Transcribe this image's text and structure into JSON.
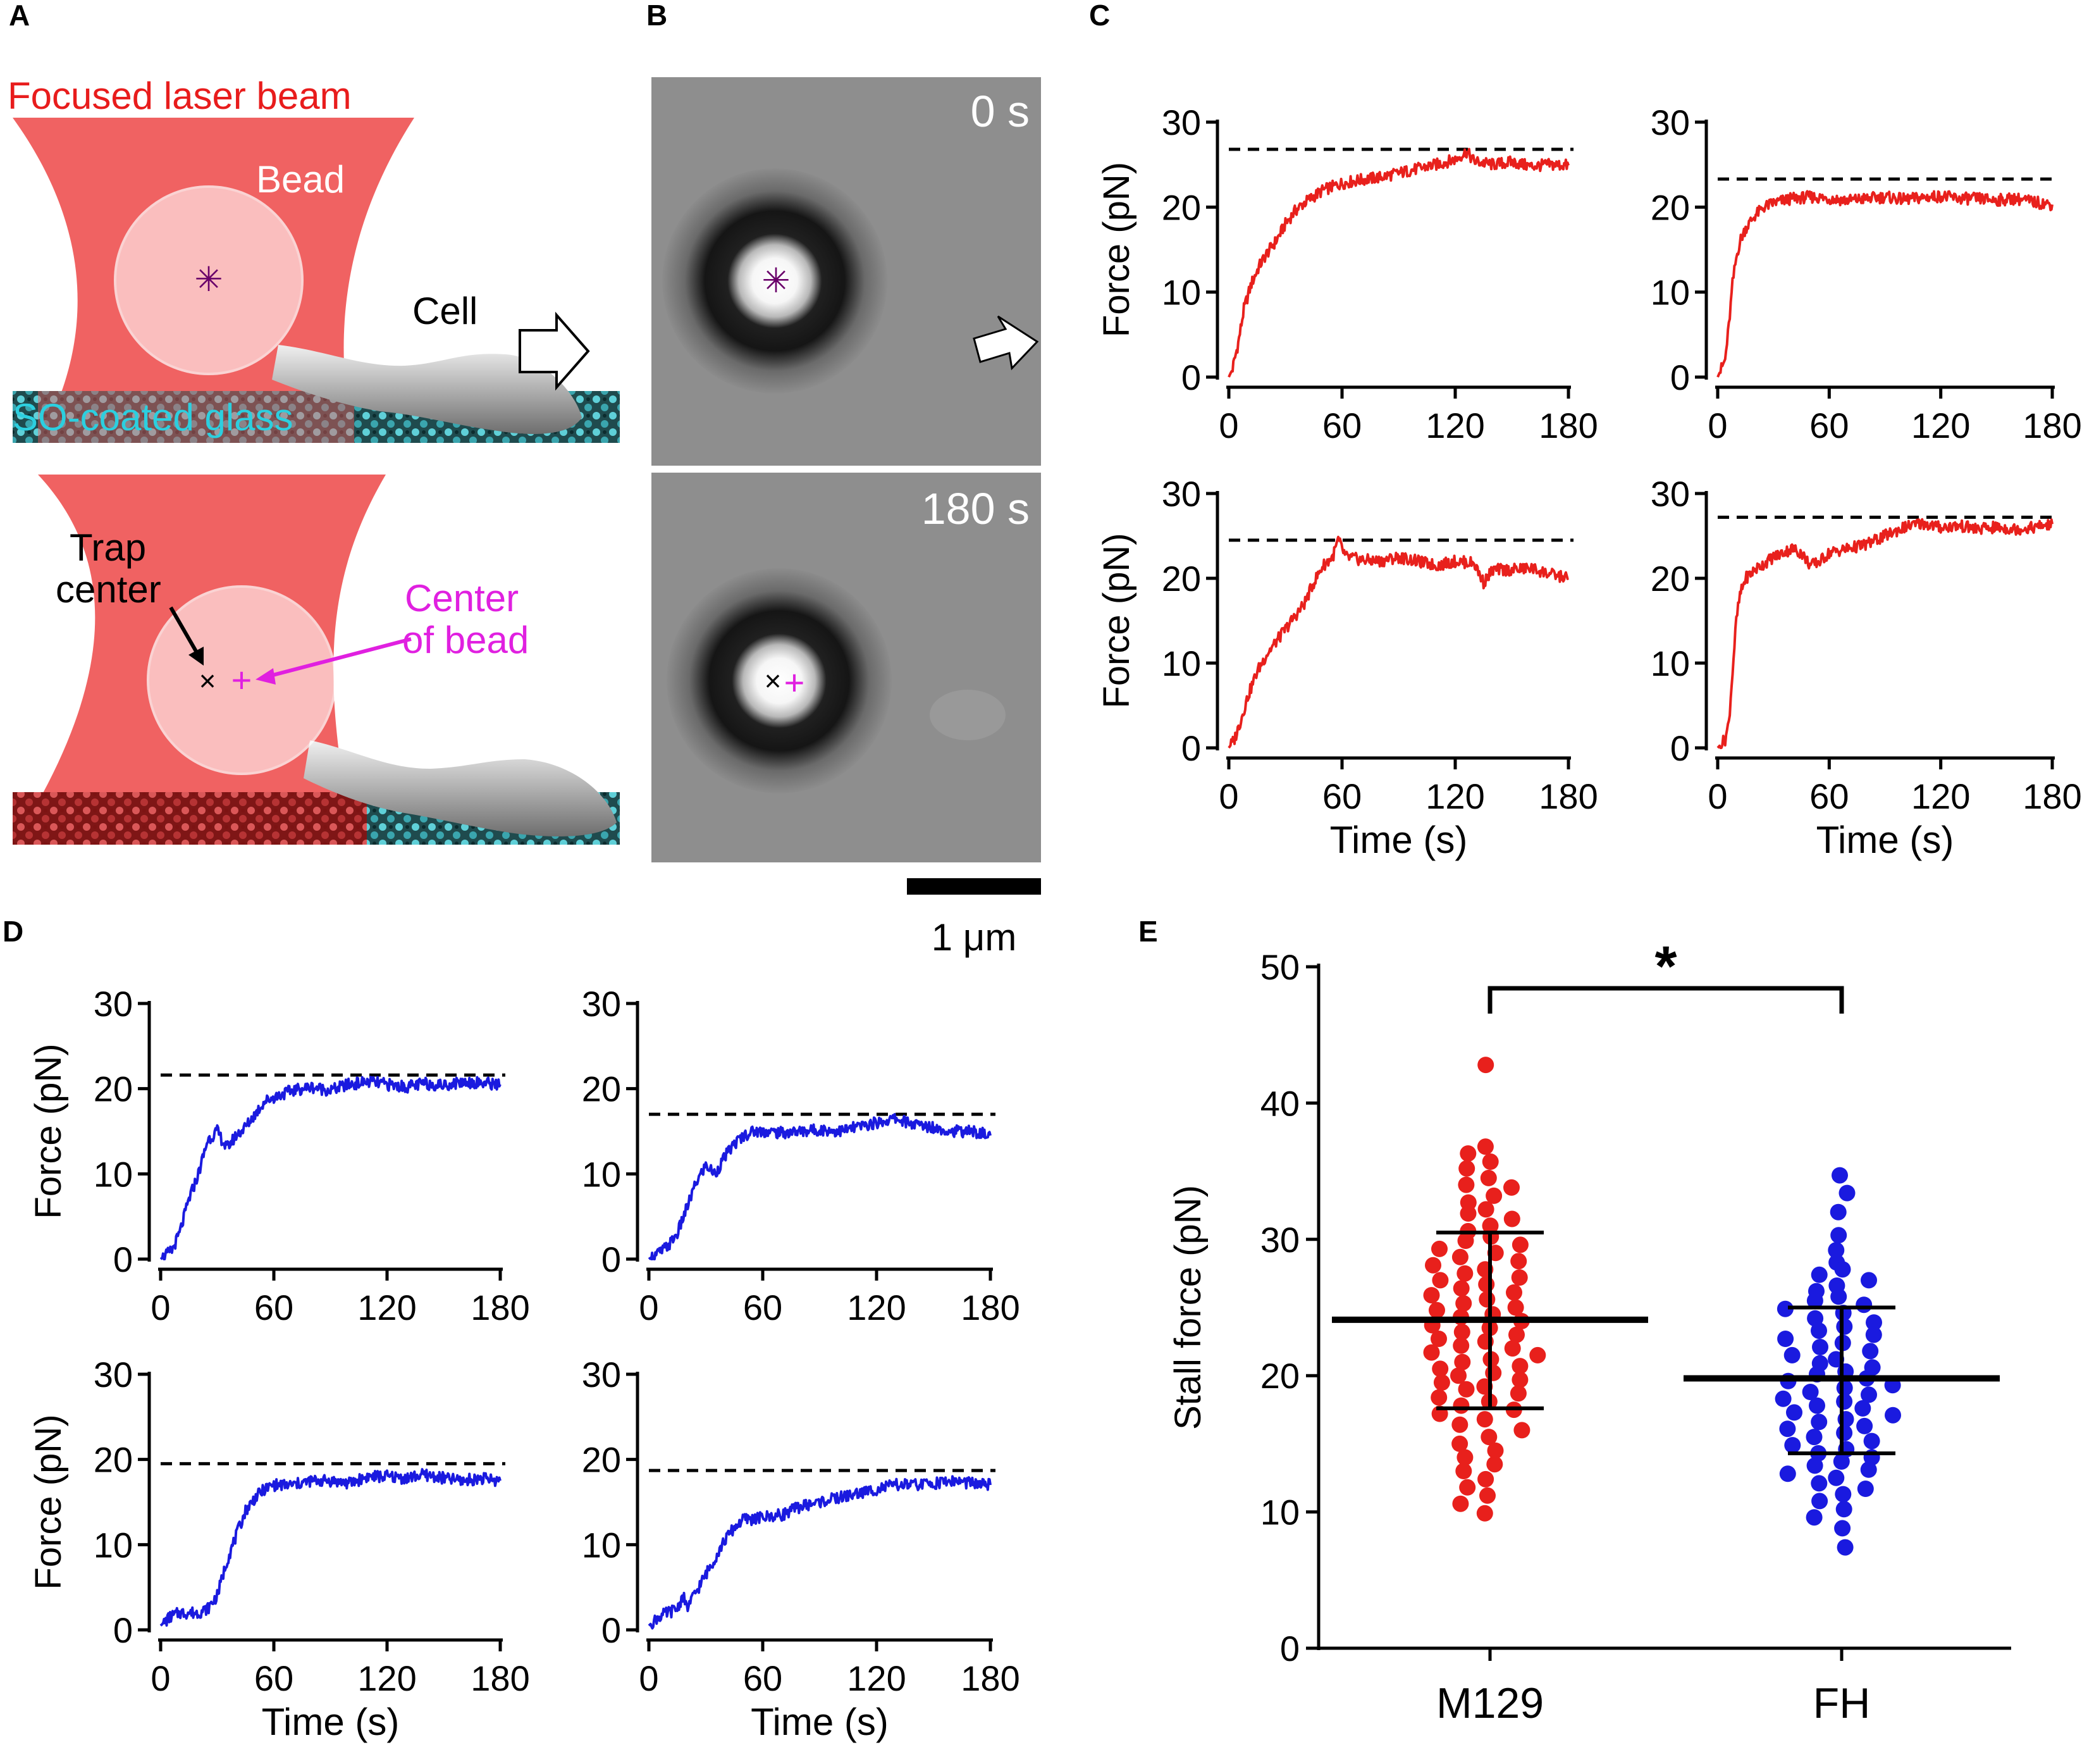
{
  "panels": {
    "A": {
      "letter": "A",
      "laser_label": "Focused laser beam",
      "bead_label": "Bead",
      "cell_label": "Cell",
      "glass_label": "SO-coated glass",
      "trap_center_label_line1": "Trap",
      "trap_center_label_line2": "center",
      "center_of_bead_line1": "Center",
      "center_of_bead_line2": "of bead"
    },
    "B": {
      "letter": "B",
      "time_top": "0 s",
      "time_bottom": "180 s",
      "scale_bar_label": "1 μm"
    },
    "C": {
      "letter": "C"
    },
    "D": {
      "letter": "D"
    },
    "E": {
      "letter": "E"
    }
  },
  "colors": {
    "red_trace": "#e8201c",
    "blue_trace": "#1a1adf",
    "magenta": "#e020e0",
    "cyan": "#28c8d8",
    "laser": "#ef5a5a"
  },
  "chart_data": [
    {
      "id": "C1",
      "type": "line",
      "panel": "C",
      "color": "red",
      "xlabel": "",
      "ylabel": "Force (pN)",
      "xlim": [
        0,
        180
      ],
      "ylim": [
        0,
        30
      ],
      "xticks": [
        0,
        60,
        120,
        180
      ],
      "yticks": [
        0,
        10,
        20,
        30
      ],
      "stall_line": 26.8,
      "x": [
        0,
        2,
        5,
        8,
        12,
        16,
        20,
        25,
        30,
        35,
        40,
        50,
        60,
        70,
        80,
        90,
        100,
        110,
        120,
        126,
        130,
        140,
        150,
        160,
        170,
        180
      ],
      "y": [
        0,
        1,
        4,
        8,
        11,
        13,
        14.5,
        16,
        18,
        19.5,
        20.5,
        22,
        22.8,
        23.2,
        23.5,
        24,
        24.5,
        25,
        25.6,
        26.5,
        25.4,
        25,
        25.3,
        24.8,
        25,
        24.9
      ]
    },
    {
      "id": "C2",
      "type": "line",
      "panel": "C",
      "color": "red",
      "xlabel": "",
      "ylabel": "",
      "xlim": [
        0,
        180
      ],
      "ylim": [
        0,
        30
      ],
      "xticks": [
        0,
        60,
        120,
        180
      ],
      "yticks": [
        0,
        10,
        20,
        30
      ],
      "stall_line": 23.3,
      "x": [
        0,
        2,
        4,
        6,
        8,
        10,
        12,
        15,
        20,
        25,
        30,
        40,
        50,
        60,
        70,
        80,
        90,
        100,
        110,
        120,
        130,
        140,
        150,
        160,
        170,
        180
      ],
      "y": [
        0,
        1,
        2,
        6,
        11,
        14,
        16,
        17.5,
        19,
        20,
        20.5,
        21,
        21.2,
        21,
        20.8,
        21,
        21.2,
        20.9,
        21.1,
        21.3,
        21,
        21,
        20.8,
        21,
        20.6,
        20.3
      ]
    },
    {
      "id": "C3",
      "type": "line",
      "panel": "C",
      "color": "red",
      "xlabel": "Time (s)",
      "ylabel": "Force (pN)",
      "xlim": [
        0,
        180
      ],
      "ylim": [
        0,
        30
      ],
      "xticks": [
        0,
        60,
        120,
        180
      ],
      "yticks": [
        0,
        10,
        20,
        30
      ],
      "stall_line": 24.5,
      "x": [
        0,
        3,
        6,
        10,
        15,
        20,
        25,
        30,
        35,
        40,
        45,
        50,
        55,
        58,
        62,
        70,
        80,
        90,
        100,
        110,
        120,
        130,
        135,
        140,
        150,
        160,
        170,
        180
      ],
      "y": [
        0,
        1,
        3,
        6,
        9,
        11,
        12.5,
        14,
        15.5,
        17,
        19.5,
        21.5,
        22.5,
        24.5,
        22.5,
        22.2,
        22,
        22.5,
        22,
        21.5,
        22,
        21.8,
        19.5,
        21,
        21,
        21.2,
        20.5,
        20
      ]
    },
    {
      "id": "C4",
      "type": "line",
      "panel": "C",
      "color": "red",
      "xlabel": "Time (s)",
      "ylabel": "",
      "xlim": [
        0,
        180
      ],
      "ylim": [
        0,
        30
      ],
      "xticks": [
        0,
        60,
        120,
        180
      ],
      "yticks": [
        0,
        10,
        20,
        30
      ],
      "stall_line": 27.2,
      "x": [
        0,
        2,
        4,
        6,
        8,
        10,
        12,
        15,
        20,
        30,
        40,
        45,
        50,
        55,
        60,
        70,
        80,
        90,
        100,
        110,
        120,
        130,
        140,
        150,
        160,
        170,
        180
      ],
      "y": [
        0,
        0.5,
        1,
        3,
        9,
        15,
        18,
        20,
        21,
        22.5,
        23.5,
        23,
        21.5,
        22,
        23,
        23.5,
        24,
        25,
        26,
        26.5,
        26,
        26.2,
        25.8,
        26,
        25.8,
        26,
        26.4
      ]
    },
    {
      "id": "D1",
      "type": "line",
      "panel": "D",
      "color": "blue",
      "xlabel": "",
      "ylabel": "Force (pN)",
      "xlim": [
        0,
        180
      ],
      "ylim": [
        0,
        30
      ],
      "xticks": [
        0,
        60,
        120,
        180
      ],
      "yticks": [
        0,
        10,
        20,
        30
      ],
      "stall_line": 21.6,
      "x": [
        0,
        3,
        6,
        10,
        15,
        20,
        25,
        30,
        35,
        40,
        45,
        50,
        55,
        60,
        70,
        80,
        90,
        100,
        110,
        120,
        130,
        140,
        150,
        160,
        170,
        180
      ],
      "y": [
        0,
        0.5,
        1,
        3,
        7,
        10,
        14,
        15,
        13,
        14.5,
        15.5,
        17,
        18.5,
        19,
        19.8,
        20.2,
        19.8,
        20.5,
        20.8,
        20.5,
        20.2,
        20.6,
        20.4,
        20.8,
        20.7,
        20.5
      ]
    },
    {
      "id": "D2",
      "type": "line",
      "panel": "D",
      "color": "blue",
      "xlabel": "",
      "ylabel": "",
      "xlim": [
        0,
        180
      ],
      "ylim": [
        0,
        30
      ],
      "xticks": [
        0,
        60,
        120,
        180
      ],
      "yticks": [
        0,
        10,
        20,
        30
      ],
      "stall_line": 17.0,
      "x": [
        0,
        3,
        6,
        10,
        15,
        20,
        25,
        30,
        35,
        40,
        45,
        50,
        55,
        60,
        70,
        80,
        90,
        100,
        110,
        120,
        130,
        140,
        150,
        160,
        170,
        180
      ],
      "y": [
        0,
        0.5,
        0.8,
        1.5,
        3,
        6,
        9,
        11,
        10,
        12,
        13.5,
        14.5,
        15,
        15,
        14.8,
        15,
        15.2,
        15,
        15.5,
        16,
        16.5,
        15.8,
        15.5,
        15,
        15,
        14.5
      ]
    },
    {
      "id": "D3",
      "type": "line",
      "panel": "D",
      "color": "blue",
      "xlabel": "Time (s)",
      "ylabel": "Force (pN)",
      "xlim": [
        0,
        180
      ],
      "ylim": [
        0,
        30
      ],
      "xticks": [
        0,
        60,
        120,
        180
      ],
      "yticks": [
        0,
        10,
        20,
        30
      ],
      "stall_line": 19.5,
      "x": [
        0,
        5,
        10,
        15,
        20,
        25,
        30,
        35,
        40,
        45,
        50,
        55,
        60,
        70,
        80,
        90,
        100,
        110,
        120,
        130,
        140,
        150,
        160,
        170,
        180
      ],
      "y": [
        0.5,
        1.5,
        2,
        2,
        2,
        2.5,
        4,
        8,
        11,
        14,
        15.5,
        16.5,
        17,
        17,
        17.5,
        17.5,
        17.2,
        18,
        18,
        17.8,
        18.2,
        17.8,
        17.5,
        17.8,
        17.5
      ]
    },
    {
      "id": "D4",
      "type": "line",
      "panel": "D",
      "color": "blue",
      "xlabel": "Time (s)",
      "ylabel": "",
      "xlim": [
        0,
        180
      ],
      "ylim": [
        0,
        30
      ],
      "xticks": [
        0,
        60,
        120,
        180
      ],
      "yticks": [
        0,
        10,
        20,
        30
      ],
      "stall_line": 18.7,
      "x": [
        0,
        5,
        10,
        15,
        18,
        20,
        25,
        30,
        35,
        40,
        45,
        50,
        55,
        60,
        70,
        80,
        90,
        100,
        110,
        120,
        130,
        140,
        150,
        160,
        170,
        180
      ],
      "y": [
        0.5,
        1.5,
        2,
        2.5,
        4,
        2.5,
        4.5,
        6.5,
        8.5,
        10.5,
        12,
        13,
        13,
        13.2,
        13.5,
        14.5,
        15,
        15.5,
        16,
        16.5,
        17,
        17,
        17.2,
        17.5,
        17.2,
        17
      ]
    },
    {
      "id": "E",
      "type": "scatter",
      "panel": "E",
      "ylabel": "Stall force (pN)",
      "ylim": [
        0,
        50
      ],
      "yticks": [
        0,
        10,
        20,
        30,
        40,
        50
      ],
      "categories": [
        "M129",
        "FH"
      ],
      "significance": "*",
      "groups": [
        {
          "name": "M129",
          "color": "red",
          "mean": 24.1,
          "sd_upper": 30.5,
          "sd_lower": 17.6,
          "values": [
            42.8,
            36.8,
            36.3,
            35.7,
            35.2,
            34.5,
            34.0,
            33.8,
            33.2,
            32.7,
            32.2,
            31.9,
            31.5,
            31.0,
            30.6,
            30.2,
            29.9,
            29.6,
            29.3,
            29.0,
            28.7,
            28.4,
            28.1,
            27.8,
            27.5,
            27.2,
            27.0,
            26.7,
            26.4,
            26.1,
            25.9,
            25.6,
            25.3,
            25.0,
            24.8,
            24.5,
            24.3,
            24.0,
            23.7,
            23.5,
            23.2,
            23.0,
            22.7,
            22.5,
            22.2,
            22.0,
            21.7,
            21.5,
            21.2,
            21.0,
            20.7,
            20.5,
            20.2,
            20.0,
            19.7,
            19.5,
            19.2,
            19.0,
            18.7,
            18.4,
            18.1,
            17.8,
            17.5,
            17.2,
            16.8,
            16.4,
            16.0,
            15.5,
            15.0,
            14.5,
            14.0,
            13.5,
            13.0,
            12.4,
            11.8,
            11.2,
            10.6,
            9.9
          ]
        },
        {
          "name": "FH",
          "color": "blue",
          "mean": 19.8,
          "sd_upper": 25.0,
          "sd_lower": 14.3,
          "values": [
            34.7,
            33.4,
            32.0,
            30.3,
            29.2,
            28.3,
            27.8,
            27.4,
            27.0,
            26.6,
            26.2,
            25.8,
            25.5,
            25.2,
            24.9,
            24.6,
            24.2,
            23.9,
            23.6,
            23.3,
            23.0,
            22.7,
            22.4,
            22.1,
            21.8,
            21.5,
            21.2,
            20.9,
            20.6,
            20.3,
            20.1,
            19.8,
            19.6,
            19.3,
            19.1,
            18.8,
            18.6,
            18.3,
            18.1,
            17.8,
            17.6,
            17.3,
            17.1,
            16.8,
            16.6,
            16.3,
            16.1,
            15.8,
            15.5,
            15.2,
            14.9,
            14.6,
            14.3,
            14.0,
            13.7,
            13.4,
            13.1,
            12.8,
            12.5,
            12.1,
            11.7,
            11.3,
            10.8,
            10.2,
            9.6,
            8.8,
            7.4
          ]
        }
      ]
    }
  ]
}
